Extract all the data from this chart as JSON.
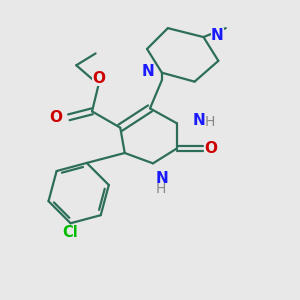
{
  "bg_color": "#e8e8e8",
  "bond_color": "#2d6e5a",
  "N_color": "#1a1aff",
  "O_color": "#cc0000",
  "Cl_color": "#00bb00",
  "H_color": "#888888",
  "line_width": 1.6,
  "font_size": 11,
  "fig_size": [
    3.0,
    3.0
  ],
  "dpi": 100,
  "xlim": [
    0.0,
    1.0
  ],
  "ylim": [
    0.0,
    1.0
  ]
}
